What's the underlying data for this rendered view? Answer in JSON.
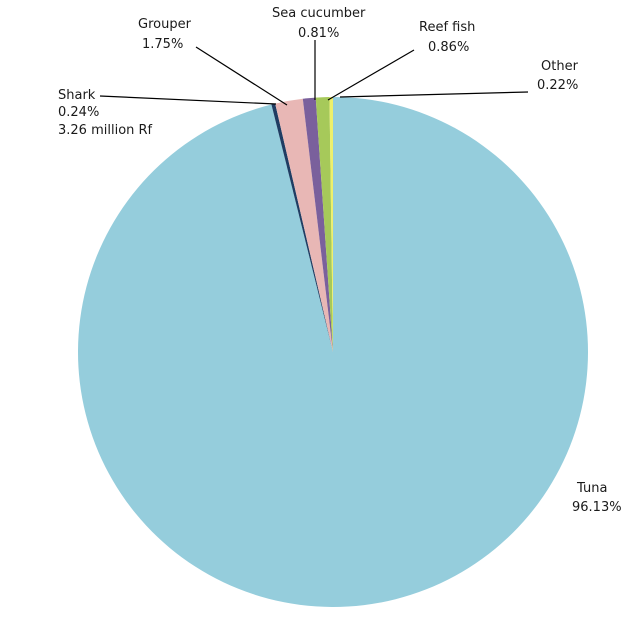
{
  "chart_data": {
    "type": "pie",
    "title": "",
    "slices": [
      {
        "name": "Tuna",
        "value": 96.13,
        "label": "96.13%",
        "color": "#95cddc"
      },
      {
        "name": "Shark",
        "value": 0.24,
        "label": "0.24%",
        "extra": "3.26 million Rf",
        "color": "#1f3d63"
      },
      {
        "name": "Grouper",
        "value": 1.75,
        "label": "1.75%",
        "color": "#e8b7b5"
      },
      {
        "name": "Sea cucumber",
        "value": 0.81,
        "label": "0.81%",
        "color": "#7a609c"
      },
      {
        "name": "Reef fish",
        "value": 0.86,
        "label": "0.86%",
        "color": "#a6c95a"
      },
      {
        "name": "Other",
        "value": 0.22,
        "label": "0.22%",
        "color": "#eef06a"
      }
    ]
  }
}
